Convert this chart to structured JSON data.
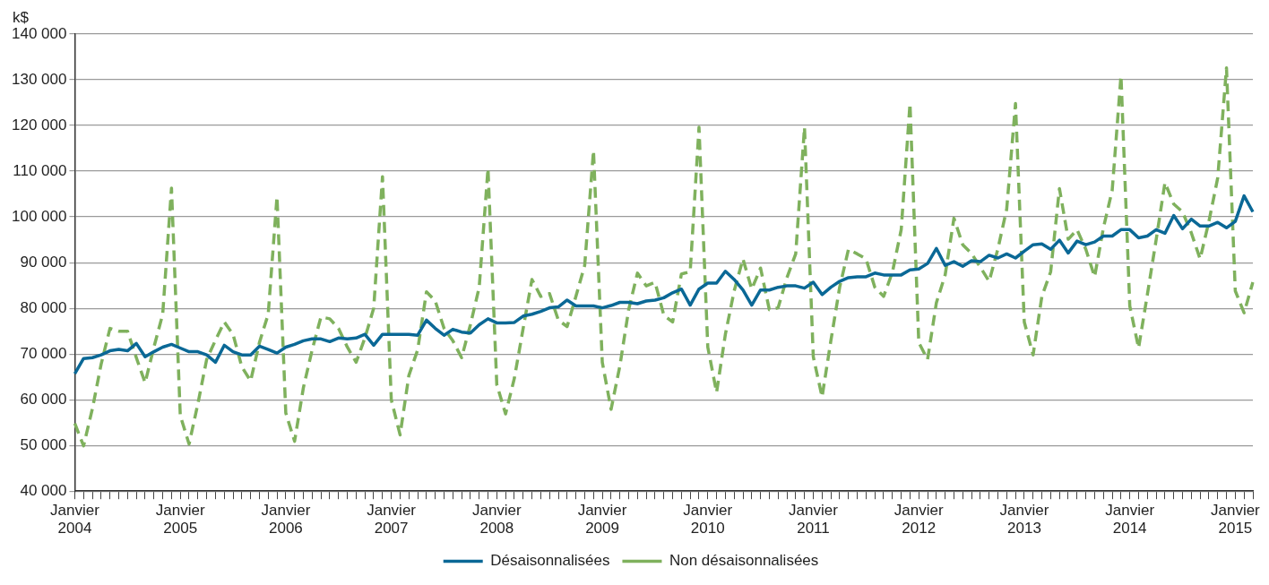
{
  "chart_data": {
    "type": "line",
    "ylabel": "k$",
    "categories": [
      "Janvier 2004",
      null,
      null,
      null,
      null,
      null,
      null,
      null,
      null,
      null,
      null,
      null,
      "Janvier 2005",
      null,
      null,
      null,
      null,
      null,
      null,
      null,
      null,
      null,
      null,
      null,
      "Janvier 2006",
      null,
      null,
      null,
      null,
      null,
      null,
      null,
      null,
      null,
      null,
      null,
      "Janvier 2007",
      null,
      null,
      null,
      null,
      null,
      null,
      null,
      null,
      null,
      null,
      null,
      "Janvier 2008",
      null,
      null,
      null,
      null,
      null,
      null,
      null,
      null,
      null,
      null,
      null,
      "Janvier 2009",
      null,
      null,
      null,
      null,
      null,
      null,
      null,
      null,
      null,
      null,
      null,
      "Janvier 2010",
      null,
      null,
      null,
      null,
      null,
      null,
      null,
      null,
      null,
      null,
      null,
      "Janvier 2011",
      null,
      null,
      null,
      null,
      null,
      null,
      null,
      null,
      null,
      null,
      null,
      "Janvier 2012",
      null,
      null,
      null,
      null,
      null,
      null,
      null,
      null,
      null,
      null,
      null,
      "Janvier 2013",
      null,
      null,
      null,
      null,
      null,
      null,
      null,
      null,
      null,
      null,
      null,
      "Janvier 2014",
      null,
      null,
      null,
      null,
      null,
      null,
      null,
      null,
      null,
      null,
      null,
      "Janvier 2015",
      null,
      null
    ],
    "series": [
      {
        "name": "Désaisonnalisées",
        "color": "#0a6896",
        "line_style": "solid",
        "values": [
          65700,
          69000,
          69200,
          69800,
          70700,
          71000,
          70700,
          72300,
          69400,
          70500,
          71500,
          72100,
          71300,
          70500,
          70500,
          69800,
          68200,
          71900,
          70500,
          69800,
          69800,
          71700,
          71000,
          70200,
          71500,
          72100,
          72900,
          73300,
          73300,
          72700,
          73500,
          73300,
          73500,
          74300,
          71900,
          74300,
          74300,
          74300,
          74300,
          74100,
          77400,
          75600,
          74100,
          75400,
          74800,
          74600,
          76400,
          77700,
          76800,
          76800,
          76900,
          78300,
          78700,
          79300,
          80100,
          80300,
          81800,
          80500,
          80500,
          80500,
          80100,
          80600,
          81300,
          81300,
          81000,
          81600,
          81800,
          82300,
          83400,
          84200,
          80700,
          84200,
          85500,
          85500,
          88100,
          86300,
          84000,
          80700,
          84000,
          84000,
          84600,
          84900,
          84900,
          84400,
          85700,
          83000,
          84600,
          85900,
          86700,
          86900,
          86900,
          87700,
          87300,
          87300,
          87300,
          88400,
          88600,
          89800,
          93100,
          89400,
          90200,
          89200,
          90400,
          90200,
          91600,
          91000,
          91900,
          91000,
          92500,
          93900,
          94100,
          92900,
          94900,
          92100,
          94700,
          93900,
          94500,
          95800,
          95800,
          97200,
          97200,
          95400,
          95800,
          97200,
          96400,
          100300,
          97400,
          99500,
          98000,
          98000,
          98800,
          97600,
          99000,
          104600,
          101100
        ]
      },
      {
        "name": "Non désaisonnalisées",
        "color": "#7fb15d",
        "line_style": "dashed",
        "values": [
          54800,
          49900,
          58000,
          67800,
          75600,
          75000,
          75000,
          69200,
          63700,
          71500,
          78700,
          106300,
          56500,
          50300,
          59100,
          68800,
          73000,
          77000,
          74300,
          67200,
          64100,
          72500,
          78700,
          104400,
          57100,
          50900,
          62600,
          70900,
          78100,
          77700,
          75600,
          71500,
          68200,
          73500,
          80000,
          108800,
          60000,
          52300,
          65300,
          70900,
          83600,
          81600,
          75600,
          72900,
          69200,
          76400,
          84600,
          110600,
          63300,
          56900,
          64700,
          75600,
          86300,
          82600,
          83200,
          77400,
          76000,
          82600,
          89400,
          114500,
          68200,
          57900,
          67400,
          79700,
          87700,
          84900,
          85700,
          78500,
          77000,
          87500,
          88000,
          119600,
          71500,
          61600,
          74300,
          83800,
          90800,
          84200,
          88800,
          79700,
          80100,
          86700,
          91900,
          119600,
          69400,
          60600,
          72900,
          84600,
          92900,
          91900,
          90800,
          84600,
          82600,
          87900,
          97200,
          124800,
          72500,
          68800,
          81200,
          87300,
          99700,
          93900,
          92000,
          89000,
          85900,
          93000,
          101700,
          124800,
          77000,
          69800,
          82600,
          88000,
          106200,
          95100,
          97200,
          92900,
          86900,
          97600,
          105800,
          130900,
          80500,
          71300,
          83000,
          95000,
          107500,
          102800,
          101100,
          96500,
          90800,
          99000,
          108500,
          132600,
          83800,
          79000,
          85700
        ]
      }
    ],
    "ylim": [
      40000,
      140000
    ],
    "yticks": [
      {
        "value": 40000,
        "label": "40 000"
      },
      {
        "value": 50000,
        "label": "50 000"
      },
      {
        "value": 60000,
        "label": "60 000"
      },
      {
        "value": 70000,
        "label": "70 000"
      },
      {
        "value": 80000,
        "label": "80 000"
      },
      {
        "value": 90000,
        "label": "90 000"
      },
      {
        "value": 100000,
        "label": "100 000"
      },
      {
        "value": 110000,
        "label": "110 000"
      },
      {
        "value": 120000,
        "label": "120 000"
      },
      {
        "value": 130000,
        "label": "130 000"
      },
      {
        "value": 140000,
        "label": "140 000"
      }
    ],
    "grid": "y",
    "legend": "bottom"
  }
}
